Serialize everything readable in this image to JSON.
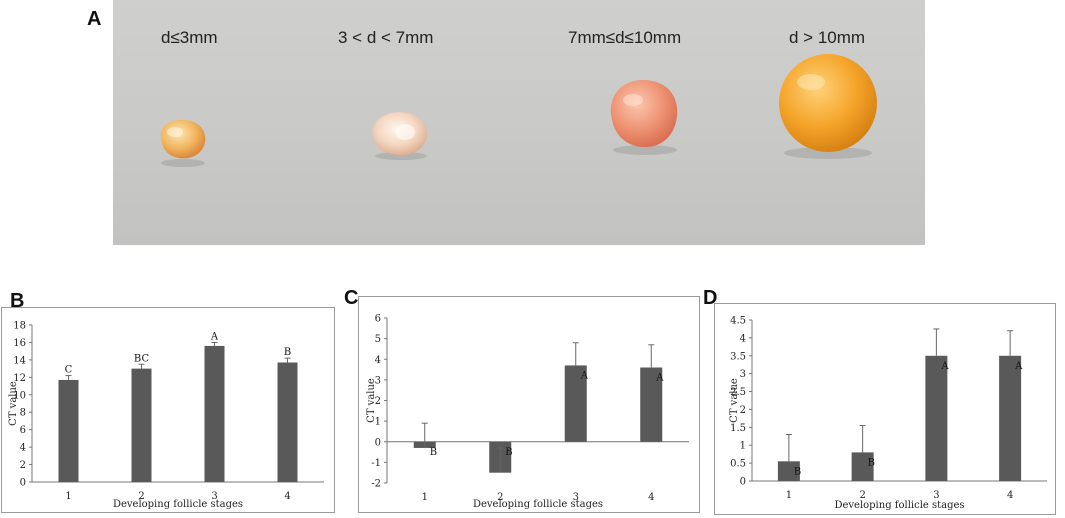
{
  "panel_labels": {
    "a": "A",
    "b": "B",
    "c": "C",
    "d": "D"
  },
  "photo": {
    "size_labels": [
      "d≤3mm",
      "3 < d < 7mm",
      "7mm≤d≤10mm",
      "d > 10mm"
    ]
  },
  "colors": {
    "bar": "#595959",
    "frame": "#9a9a9a"
  },
  "chart_data": [
    {
      "type": "bar",
      "panel": "B",
      "categories": [
        "1",
        "2",
        "3",
        "4"
      ],
      "values": [
        11.7,
        13.0,
        15.6,
        13.7
      ],
      "errors": [
        0.5,
        0.5,
        0.4,
        0.5
      ],
      "letters": [
        "C",
        "BC",
        "A",
        "B"
      ],
      "xlabel": "Developing follicle stages",
      "ylabel": "CT value",
      "ylim": [
        0,
        18
      ],
      "yticks": [
        0,
        2,
        4,
        6,
        8,
        10,
        12,
        14,
        16,
        18
      ],
      "grid": false
    },
    {
      "type": "bar",
      "panel": "C",
      "categories": [
        "1",
        "2",
        "3",
        "4"
      ],
      "values": [
        -0.3,
        -1.5,
        3.7,
        3.6
      ],
      "errors": [
        1.2,
        1.2,
        1.1,
        1.1
      ],
      "letters": [
        "B",
        "B",
        "A",
        "A"
      ],
      "xlabel": "Developing follicle stages",
      "ylabel": "CT value",
      "ylim": [
        -2,
        6
      ],
      "yticks": [
        -2,
        -1,
        0,
        1,
        2,
        3,
        4,
        5,
        6
      ],
      "grid": false
    },
    {
      "type": "bar",
      "panel": "D",
      "categories": [
        "1",
        "2",
        "3",
        "4"
      ],
      "values": [
        0.55,
        0.8,
        3.5,
        3.5
      ],
      "errors": [
        0.75,
        0.75,
        0.75,
        0.7
      ],
      "letters": [
        "B",
        "B",
        "A",
        "A"
      ],
      "xlabel": "Developing follicle stages",
      "ylabel": "CT value",
      "ylim": [
        0,
        4.5
      ],
      "yticks": [
        0,
        0.5,
        1,
        1.5,
        2,
        2.5,
        3,
        3.5,
        4,
        4.5
      ],
      "grid": false
    }
  ]
}
